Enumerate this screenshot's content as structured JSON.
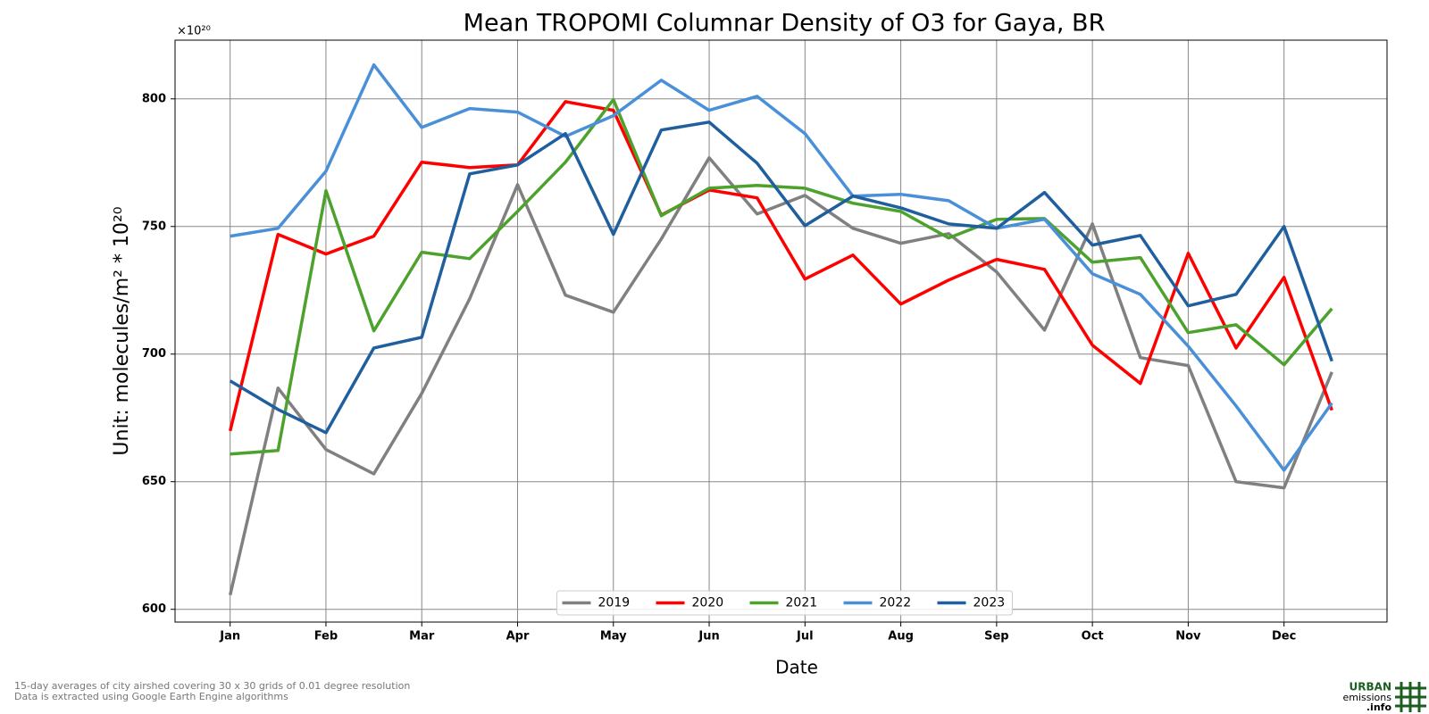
{
  "chart_data": {
    "type": "line",
    "title": "Mean TROPOMI Columnar Density of O3 for Gaya, BR",
    "offset_label": "×10²⁰",
    "ylabel": "Unit: molecules/m² * 10²⁰",
    "xlabel": "Date",
    "categories": [
      "Jan",
      null,
      "Feb",
      null,
      "Mar",
      null,
      "Apr",
      null,
      "May",
      null,
      "Jun",
      null,
      "Jul",
      null,
      "Aug",
      null,
      "Sep",
      null,
      "Oct",
      null,
      "Nov",
      null,
      "Dec",
      null
    ],
    "ylim": [
      595,
      823
    ],
    "yticks": [
      600,
      650,
      700,
      750,
      800
    ],
    "grid": true,
    "legend": "lower center",
    "series": [
      {
        "name": "2019",
        "color": "#808080",
        "values": [
          605.6,
          686.7,
          662.6,
          653.1,
          684.6,
          721.7,
          766.4,
          723.1,
          716.4,
          745.1,
          776.9,
          754.9,
          762.2,
          749.3,
          743.4,
          747.2,
          732.2,
          709.4,
          751.0,
          698.6,
          695.5,
          650.0,
          647.6,
          693.0
        ]
      },
      {
        "name": "2020",
        "color": "#ff0000",
        "values": [
          669.9,
          746.9,
          739.2,
          746.2,
          775.2,
          773.1,
          774.1,
          798.9,
          795.5,
          754.5,
          764.3,
          761.2,
          729.4,
          738.8,
          719.6,
          729.0,
          737.1,
          733.2,
          703.5,
          688.5,
          739.5,
          702.4,
          730.1,
          678.0
        ]
      },
      {
        "name": "2021",
        "color": "#4ca22c",
        "values": [
          660.8,
          662.2,
          764.0,
          709.1,
          739.9,
          737.4,
          755.9,
          775.2,
          799.7,
          754.2,
          765.0,
          766.1,
          765.0,
          759.1,
          755.9,
          745.5,
          752.8,
          753.1,
          736.0,
          737.8,
          708.4,
          711.5,
          695.8,
          717.8
        ]
      },
      {
        "name": "2022",
        "color": "#4a90d9",
        "values": [
          746.2,
          749.3,
          771.7,
          813.3,
          788.8,
          796.2,
          794.8,
          785.3,
          793.4,
          807.3,
          795.5,
          801.0,
          786.4,
          761.9,
          762.6,
          760.1,
          749.3,
          752.8,
          731.5,
          723.4,
          703.1,
          679.7,
          654.5,
          680.8
        ]
      },
      {
        "name": "2023",
        "color": "#1f5f9e",
        "values": [
          689.5,
          678.3,
          669.2,
          702.4,
          706.6,
          770.6,
          774.1,
          786.4,
          746.9,
          787.8,
          790.9,
          774.8,
          750.3,
          761.9,
          757.3,
          751.0,
          749.3,
          763.3,
          742.7,
          746.5,
          718.9,
          723.4,
          750.0,
          697.2
        ]
      }
    ]
  },
  "footnotes": [
    "15-day averages of city airshed covering 30 x 30 grids of 0.01 degree resolution",
    "Data is extracted using Google Earth Engine algorithms"
  ],
  "logo": {
    "line1": "URBAN",
    "line2": "emissions",
    "line3": ".info"
  }
}
